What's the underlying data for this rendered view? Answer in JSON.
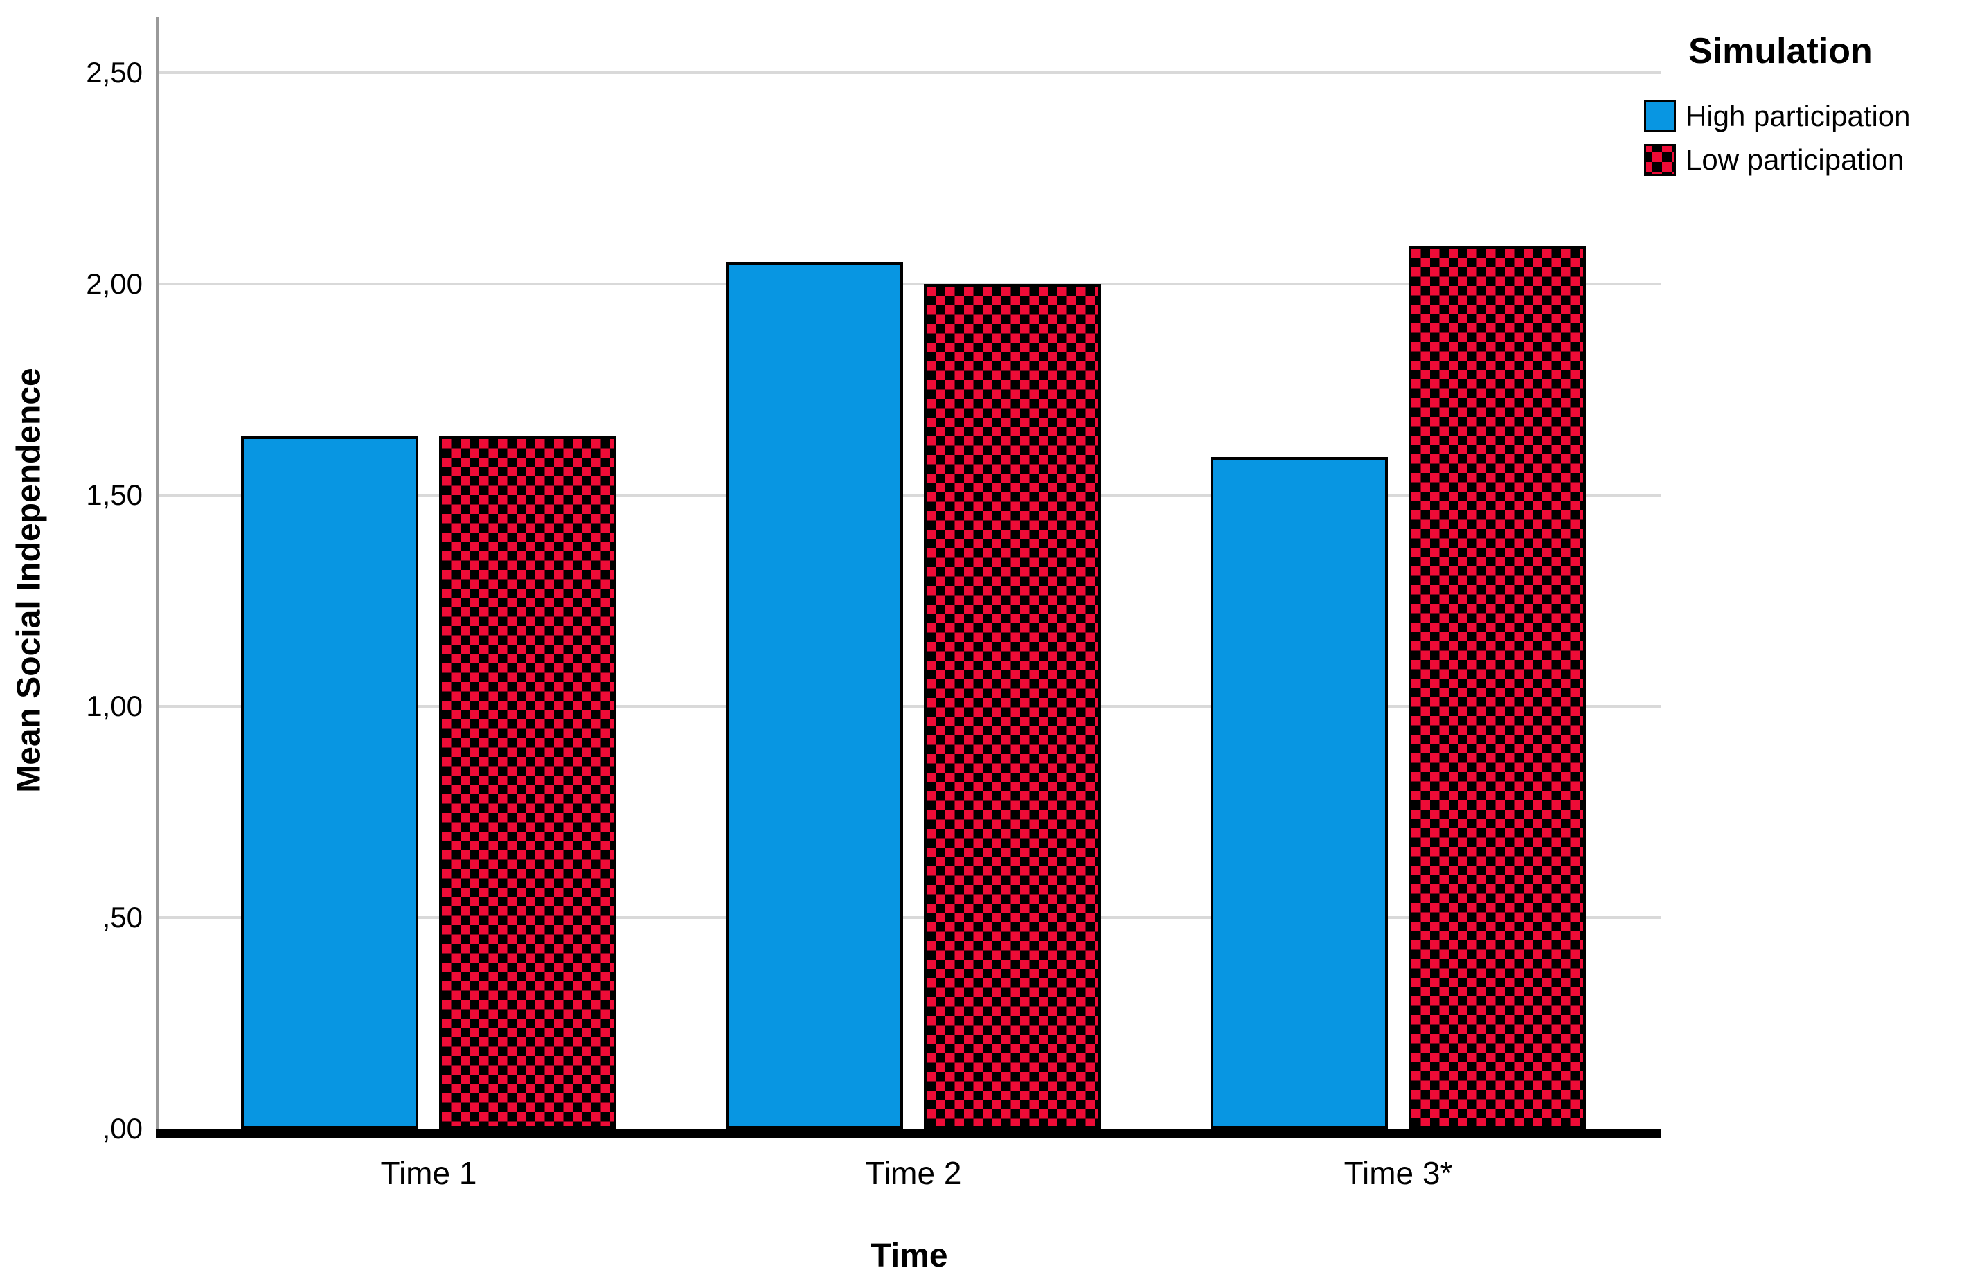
{
  "chart_data": {
    "type": "bar",
    "legend_title": "Simulation",
    "categories": [
      "Time 1",
      "Time 2",
      "Time 3*"
    ],
    "series": [
      {
        "name": "High participation",
        "values": [
          1.64,
          2.05,
          1.59
        ],
        "color": "#0896E2",
        "pattern": "solid"
      },
      {
        "name": "Low participation",
        "values": [
          1.64,
          2.0,
          2.09
        ],
        "color": "#EE0C37",
        "pattern": "checker"
      }
    ],
    "xlabel": "Time",
    "ylabel": "Mean Social Independence",
    "ylim": [
      0,
      2.63
    ],
    "yticks": [
      0,
      0.5,
      1,
      1.5,
      2,
      2.5
    ],
    "ytick_labels": [
      ",00",
      ",50",
      "1,00",
      "1,50",
      "2,00",
      "2,50"
    ],
    "grid": true,
    "legend_position": "top-right",
    "colors": {
      "grid": "#d9d9d9",
      "y_axis": "#9a9a9a",
      "x_axis": "#000000",
      "bar_border": "#000000",
      "pattern_background": "#000000",
      "text": "#000000",
      "background": "#ffffff"
    }
  }
}
